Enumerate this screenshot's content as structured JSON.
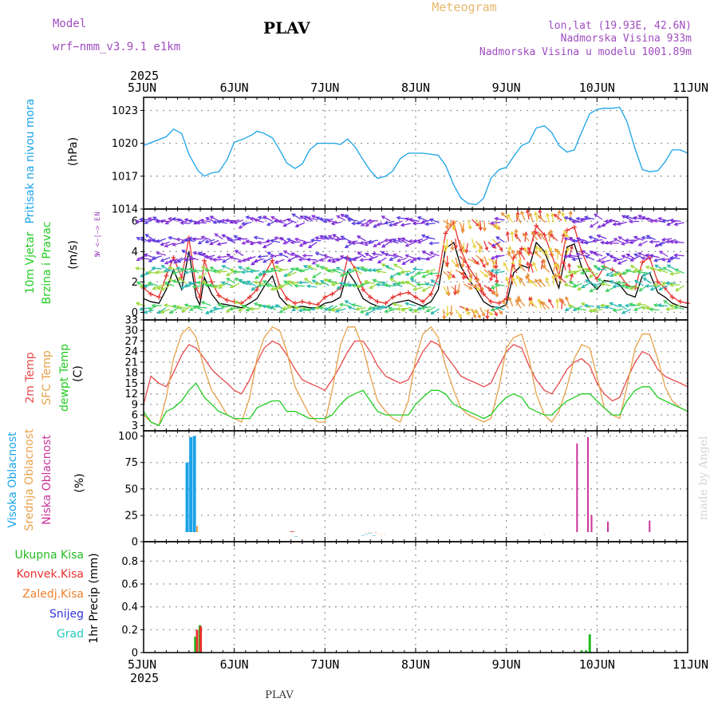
{
  "header": {
    "model_label": "Model",
    "model_name": "wrf−nmm_v3.9.1 e1km",
    "station": "PLAV",
    "product": "Meteogram",
    "lonlat": "lon,lat (19.93E, 42.6N)",
    "elevation": "Nadmorska Visina 933m",
    "model_elevation": "Nadmorska Visina u modelu 1001.89m"
  },
  "time_axis": {
    "year": "2025",
    "ticks": [
      "5JUN",
      "6JUN",
      "7JUN",
      "8JUN",
      "9JUN",
      "10JUN",
      "11JUN"
    ]
  },
  "footer": {
    "station": "PLAV",
    "credit": "made by Angel"
  },
  "colors": {
    "pressure": "#1ba3e8",
    "wind_speed": "#000000",
    "wind_gust": "#e8322e",
    "temp2m": "#e74c4c",
    "sfc": "#e7a14a",
    "dewpt": "#22cc22",
    "cloud_high": "#1ba3e8",
    "cloud_mid": "#e7a14a",
    "cloud_low": "#cc3399",
    "rain_total": "#22bb22",
    "rain_conv": "#e8322e",
    "freezing": "#f08030",
    "snow": "#3333dd",
    "hail": "#22ccbb",
    "grid": "#9a9a9a"
  },
  "chart_data": [
    {
      "type": "line",
      "panel": "pressure",
      "ylabel": [
        "Pritisak na nivou mora",
        "(hPa)"
      ],
      "yticks": [
        1014,
        1017,
        1020,
        1023
      ],
      "ylim": [
        1014,
        1024.2
      ],
      "x": [
        0,
        0.25,
        0.33,
        0.42,
        0.5,
        0.6,
        0.67,
        0.75,
        0.83,
        0.92,
        1.0,
        1.1,
        1.2,
        1.25,
        1.33,
        1.42,
        1.5,
        1.58,
        1.67,
        1.75,
        1.83,
        1.92,
        2.0,
        2.1,
        2.17,
        2.25,
        2.33,
        2.42,
        2.5,
        2.58,
        2.67,
        2.75,
        2.83,
        2.92,
        3.0,
        3.08,
        3.17,
        3.25,
        3.33,
        3.42,
        3.5,
        3.58,
        3.67,
        3.75,
        3.83,
        3.92,
        4.0,
        4.08,
        4.17,
        4.25,
        4.33,
        4.42,
        4.5,
        4.58,
        4.67,
        4.75,
        4.83,
        4.92,
        5.0,
        5.08,
        5.17,
        5.25,
        5.33,
        5.42,
        5.5,
        5.58,
        5.67,
        5.75,
        5.83,
        5.92,
        6.0
      ],
      "series": [
        {
          "values": [
            1019.8,
            1020.6,
            1021.3,
            1020.9,
            1019.0,
            1017.5,
            1017.0,
            1017.3,
            1017.4,
            1018.5,
            1020.1,
            1020.4,
            1020.8,
            1021.1,
            1020.9,
            1020.5,
            1019.4,
            1018.2,
            1017.7,
            1018.1,
            1019.4,
            1020.0,
            1020.0,
            1020.0,
            1019.9,
            1020.4,
            1019.7,
            1018.5,
            1017.5,
            1016.8,
            1017.0,
            1017.5,
            1018.6,
            1019.1,
            1019.1,
            1019.1,
            1019.0,
            1018.9,
            1018.0,
            1016.2,
            1015.0,
            1014.5,
            1014.4,
            1015.0,
            1016.8,
            1017.6,
            1017.8,
            1018.8,
            1019.8,
            1020.1,
            1021.4,
            1021.6,
            1021.0,
            1019.8,
            1019.2,
            1019.4,
            1021.0,
            1022.7,
            1023.1,
            1023.2,
            1023.2,
            1023.3,
            1022.0,
            1019.5,
            1017.6,
            1017.4,
            1017.5,
            1018.3,
            1019.4,
            1019.4,
            1019.1
          ]
        }
      ]
    },
    {
      "type": "line",
      "panel": "wind",
      "ylabel": [
        "10m Vjetar",
        "Brzina i Pravac",
        "(m/s)"
      ],
      "direction_legend": [
        "N",
        "W <—|—> E",
        "S"
      ],
      "yticks": [
        0,
        2,
        4,
        6
      ],
      "ylim": [
        -0.5,
        6.8
      ],
      "x": [
        0,
        0.08,
        0.17,
        0.25,
        0.33,
        0.42,
        0.5,
        0.58,
        0.62,
        0.67,
        0.75,
        0.83,
        0.92,
        1.0,
        1.08,
        1.17,
        1.25,
        1.33,
        1.42,
        1.5,
        1.58,
        1.67,
        1.75,
        1.83,
        1.92,
        2.0,
        2.08,
        2.17,
        2.25,
        2.33,
        2.42,
        2.5,
        2.58,
        2.67,
        2.75,
        2.83,
        2.92,
        3.0,
        3.08,
        3.17,
        3.25,
        3.33,
        3.42,
        3.5,
        3.58,
        3.67,
        3.75,
        3.83,
        3.92,
        4.0,
        4.08,
        4.17,
        4.25,
        4.33,
        4.42,
        4.5,
        4.58,
        4.67,
        4.75,
        4.83,
        4.92,
        5.0,
        5.08,
        5.17,
        5.25,
        5.33,
        5.42,
        5.5,
        5.58,
        5.67,
        5.75,
        5.83,
        5.92,
        6.0
      ],
      "series": [
        {
          "name": "speed",
          "values": [
            0.9,
            0.7,
            0.6,
            1.5,
            2.8,
            1.5,
            4.0,
            1.0,
            0.5,
            2.3,
            1.2,
            0.6,
            0.5,
            0.4,
            0.3,
            0.6,
            0.9,
            1.7,
            2.4,
            1.0,
            0.5,
            0.3,
            0.4,
            0.3,
            0.3,
            0.6,
            0.7,
            1.0,
            2.7,
            2.0,
            0.9,
            0.6,
            0.4,
            0.3,
            0.6,
            0.7,
            0.8,
            0.6,
            0.4,
            0.7,
            1.5,
            4.2,
            4.6,
            3.0,
            2.2,
            1.5,
            0.7,
            0.4,
            0.3,
            0.5,
            2.6,
            3.1,
            2.9,
            4.6,
            4.0,
            2.8,
            1.6,
            4.3,
            4.5,
            3.0,
            2.0,
            1.5,
            2.1,
            2.0,
            1.8,
            1.2,
            1.0,
            2.4,
            2.6,
            1.3,
            1.0,
            0.6,
            0.4,
            0.3
          ]
        },
        {
          "name": "gust",
          "values": [
            1.6,
            1.2,
            1.0,
            2.4,
            3.6,
            2.3,
            4.9,
            1.6,
            1.0,
            3.4,
            2.0,
            1.1,
            0.8,
            0.7,
            0.6,
            1.0,
            1.5,
            2.5,
            3.4,
            1.7,
            0.9,
            0.6,
            0.7,
            0.6,
            0.5,
            1.0,
            1.2,
            1.6,
            3.6,
            2.9,
            1.5,
            1.0,
            0.7,
            0.6,
            1.0,
            1.2,
            1.3,
            1.0,
            0.7,
            1.2,
            2.4,
            5.2,
            5.9,
            4.1,
            3.0,
            2.2,
            1.2,
            0.7,
            0.6,
            0.9,
            3.6,
            4.2,
            3.9,
            5.7,
            5.1,
            3.8,
            2.4,
            5.4,
            5.6,
            4.0,
            2.8,
            2.2,
            3.0,
            2.8,
            2.5,
            1.8,
            1.6,
            3.3,
            3.6,
            2.0,
            1.6,
            1.0,
            0.7,
            0.6
          ]
        }
      ]
    },
    {
      "type": "line",
      "panel": "temperature",
      "ylabel": [
        "2m Temp",
        "SFC Temp",
        "dewpt Temp",
        "(C)"
      ],
      "yticks": [
        3,
        6,
        9,
        12,
        15,
        18,
        21,
        24,
        27,
        30,
        33
      ],
      "ylim": [
        1.5,
        33
      ],
      "x": [
        0,
        0.08,
        0.17,
        0.25,
        0.33,
        0.42,
        0.5,
        0.58,
        0.67,
        0.75,
        0.83,
        0.92,
        1.0,
        1.08,
        1.17,
        1.25,
        1.33,
        1.42,
        1.5,
        1.58,
        1.67,
        1.75,
        1.83,
        1.92,
        2.0,
        2.08,
        2.17,
        2.25,
        2.33,
        2.42,
        2.5,
        2.58,
        2.67,
        2.75,
        2.83,
        2.92,
        3.0,
        3.08,
        3.17,
        3.25,
        3.33,
        3.42,
        3.5,
        3.58,
        3.67,
        3.75,
        3.83,
        3.92,
        4.0,
        4.08,
        4.17,
        4.25,
        4.33,
        4.42,
        4.5,
        4.58,
        4.67,
        4.75,
        4.83,
        4.92,
        5.0,
        5.08,
        5.17,
        5.25,
        5.33,
        5.42,
        5.5,
        5.58,
        5.67,
        5.75,
        5.83,
        5.92,
        6.0
      ],
      "series": [
        {
          "name": "2m Temp",
          "values": [
            9,
            17,
            15,
            14,
            18,
            23,
            26,
            25,
            22,
            19,
            17,
            15,
            13,
            12,
            16,
            21,
            25,
            27,
            26,
            23,
            19,
            16,
            15,
            14,
            13,
            16,
            20,
            24,
            27,
            27,
            24,
            20,
            17,
            16,
            15,
            16,
            20,
            24,
            27,
            26,
            23,
            20,
            17,
            16,
            15,
            14,
            15,
            20,
            24,
            26,
            25,
            20,
            16,
            13,
            12,
            15,
            19,
            21,
            22,
            20,
            15,
            12,
            10,
            11,
            16,
            21,
            24,
            23,
            19,
            17,
            16,
            15,
            14
          ]
        },
        {
          "name": "SFC Temp",
          "values": [
            6,
            4,
            3,
            11,
            22,
            29,
            31,
            28,
            19,
            13,
            10,
            6,
            5,
            4,
            11,
            22,
            28,
            31,
            30,
            24,
            14,
            10,
            6,
            4,
            4,
            13,
            26,
            31,
            31,
            25,
            17,
            10,
            7,
            5,
            4,
            10,
            22,
            29,
            31,
            28,
            20,
            13,
            8,
            6,
            5,
            4,
            5,
            14,
            25,
            28,
            29,
            22,
            12,
            6,
            4,
            7,
            14,
            22,
            26,
            25,
            17,
            8,
            6,
            5,
            14,
            25,
            29,
            29,
            22,
            14,
            10,
            8,
            7
          ]
        },
        {
          "name": "dewpt Temp",
          "values": [
            7,
            4,
            3,
            7,
            8,
            10,
            13,
            15,
            11,
            9,
            7,
            6,
            5,
            5,
            5,
            8,
            9,
            10,
            10,
            7,
            7,
            6,
            5,
            5,
            5,
            6,
            9,
            11,
            12,
            13,
            10,
            7,
            6,
            6,
            6,
            6,
            9,
            11,
            13,
            13,
            12,
            9,
            8,
            7,
            6,
            5,
            6,
            9,
            11,
            12,
            11,
            8,
            7,
            6,
            6,
            8,
            10,
            11,
            12,
            12,
            10,
            8,
            6,
            6,
            10,
            13,
            14,
            14,
            11,
            10,
            9,
            8,
            7
          ]
        }
      ]
    },
    {
      "type": "bar",
      "panel": "cloud",
      "ylabel": [
        "Visoka Oblacnost",
        "Srednja Oblacnost",
        "Niska Oblacnost",
        "(%)"
      ],
      "yticks": [
        0,
        25,
        50,
        75,
        100
      ],
      "ylim": [
        0,
        105
      ],
      "series": [
        {
          "name": "Visoka Oblacnost",
          "x": [
            0.48,
            0.52,
            0.56,
            1.68,
            2.42,
            2.46,
            2.5,
            2.54
          ],
          "values": [
            75,
            99,
            100,
            5,
            6,
            7,
            8,
            6
          ]
        },
        {
          "name": "Srednja Oblacnost",
          "x": [
            0.59,
            1.62,
            1.66,
            2.44,
            2.48,
            2.52,
            2.58,
            2.62,
            2.66
          ],
          "values": [
            15,
            10,
            10,
            8,
            9,
            9,
            7,
            7,
            7
          ]
        },
        {
          "name": "Niska Oblacnost",
          "x": [
            1.64,
            2.56,
            4.42,
            4.78,
            4.9,
            4.94,
            5.12,
            5.58
          ],
          "values": [
            10,
            9,
            7,
            93,
            99,
            25,
            19,
            20
          ]
        }
      ]
    },
    {
      "type": "bar",
      "panel": "precip",
      "ylabel": [
        "Ukupna Kisa",
        "Konvek.Kisa",
        "Zaledj.Kisa",
        "Snijeg",
        "Grad",
        "1hr Precip (mm)"
      ],
      "yticks": [
        0,
        0.2,
        0.4,
        0.6,
        0.8
      ],
      "ylim": [
        0,
        0.97
      ],
      "series": [
        {
          "name": "Ukupna Kisa",
          "x": [
            0.57,
            0.62,
            4.83,
            4.88,
            4.92
          ],
          "values": [
            0.14,
            0.24,
            0.02,
            0.02,
            0.16
          ]
        },
        {
          "name": "Konvek.Kisa",
          "x": [
            0.59,
            0.63
          ],
          "values": [
            0.2,
            0.23
          ]
        }
      ]
    }
  ]
}
